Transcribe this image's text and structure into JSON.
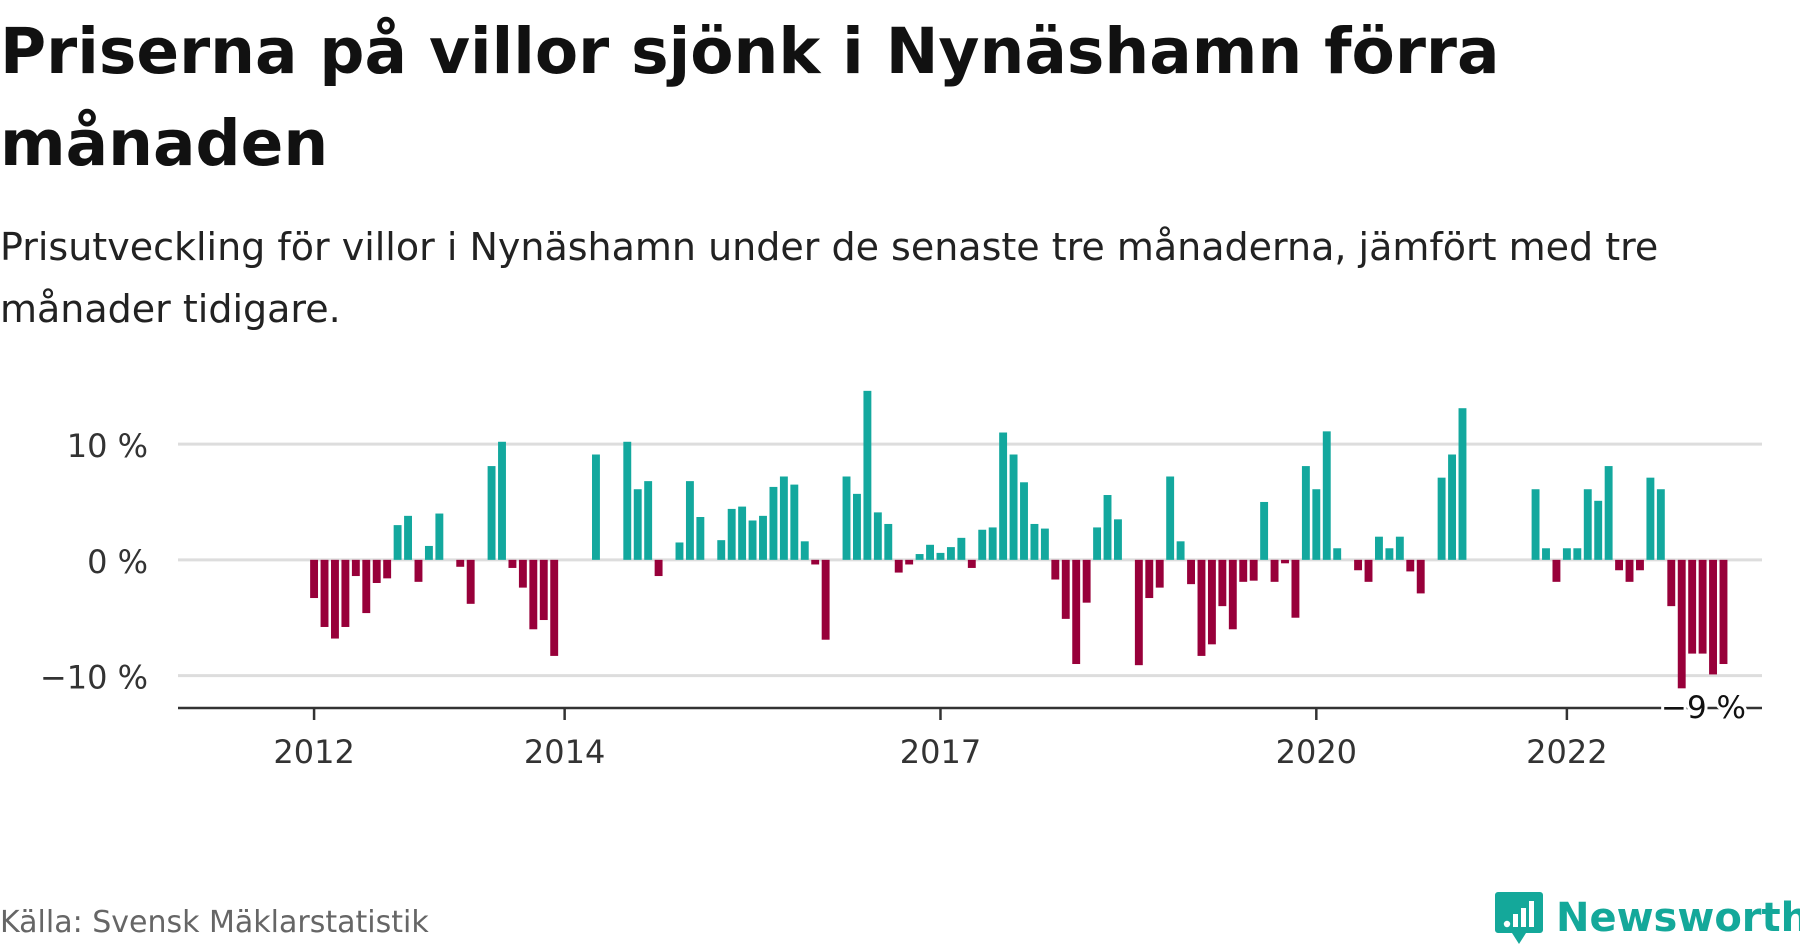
{
  "title": "Priserna på villor sjönk i Nynäshamn förra månaden",
  "subtitle": "Prisutveckling för villor i Nynäshamn under de senaste tre månaderna, jämfört med tre månader tidigare.",
  "source": "Källa: Svensk Mäklarstatistik",
  "brand": "Newsworthy",
  "colors": {
    "positive": "#13a89e",
    "negative": "#98003a",
    "grid": "#dddddd",
    "axis": "#333333",
    "brand": "#14a89a"
  },
  "chart_data": {
    "type": "bar",
    "ylim": [
      -12.8,
      14.5
    ],
    "y_ticks": [
      {
        "value": 10,
        "label": "10 %"
      },
      {
        "value": 0,
        "label": "0 %"
      },
      {
        "value": -10,
        "label": "−10 %"
      }
    ],
    "x_ticks": [
      {
        "year": 2012,
        "label": "2012"
      },
      {
        "year": 2014,
        "label": "2014"
      },
      {
        "year": 2017,
        "label": "2017"
      },
      {
        "year": 2020,
        "label": "2020"
      },
      {
        "year": 2022,
        "label": "2022"
      }
    ],
    "x_start": "2011-06",
    "annotation": {
      "label": "−9 %",
      "value": -9
    },
    "values": [
      null,
      null,
      null,
      null,
      null,
      null,
      null,
      -3.3,
      -5.8,
      -6.8,
      -5.8,
      -1.4,
      -4.6,
      -2.0,
      -1.6,
      3.0,
      3.8,
      -1.9,
      1.2,
      4.0,
      null,
      -0.6,
      -3.8,
      null,
      8.1,
      10.2,
      -0.7,
      -2.4,
      -6.0,
      -5.2,
      -8.3,
      null,
      null,
      null,
      9.1,
      null,
      null,
      10.2,
      6.1,
      6.8,
      -1.4,
      null,
      1.5,
      6.8,
      3.7,
      null,
      1.7,
      4.4,
      4.6,
      3.4,
      3.8,
      6.3,
      7.2,
      6.5,
      1.6,
      -0.4,
      -6.9,
      null,
      7.2,
      5.7,
      14.6,
      4.1,
      3.1,
      -1.1,
      -0.4,
      0.5,
      1.3,
      0.6,
      1.1,
      1.9,
      -0.7,
      2.6,
      2.8,
      11.0,
      9.1,
      6.7,
      3.1,
      2.7,
      -1.7,
      -5.1,
      -9.0,
      -3.7,
      2.8,
      5.6,
      3.5,
      null,
      -9.1,
      -3.3,
      -2.4,
      7.2,
      1.6,
      -2.1,
      -8.3,
      -7.3,
      -4.0,
      -6.0,
      -1.9,
      -1.8,
      5.0,
      -1.9,
      -0.3,
      -5.0,
      8.1,
      6.1,
      11.1,
      1.0,
      null,
      -0.9,
      -1.9,
      2.0,
      1.0,
      2.0,
      -1.0,
      -2.9,
      null,
      7.1,
      9.1,
      13.1,
      null,
      null,
      null,
      null,
      null,
      null,
      6.1,
      1.0,
      -1.9,
      1.0,
      1.0,
      6.1,
      5.1,
      8.1,
      -0.9,
      -1.9,
      -0.9,
      7.1,
      6.1,
      -4.0,
      -11.1,
      -8.1,
      -8.1,
      -9.9,
      -9.0
    ]
  }
}
